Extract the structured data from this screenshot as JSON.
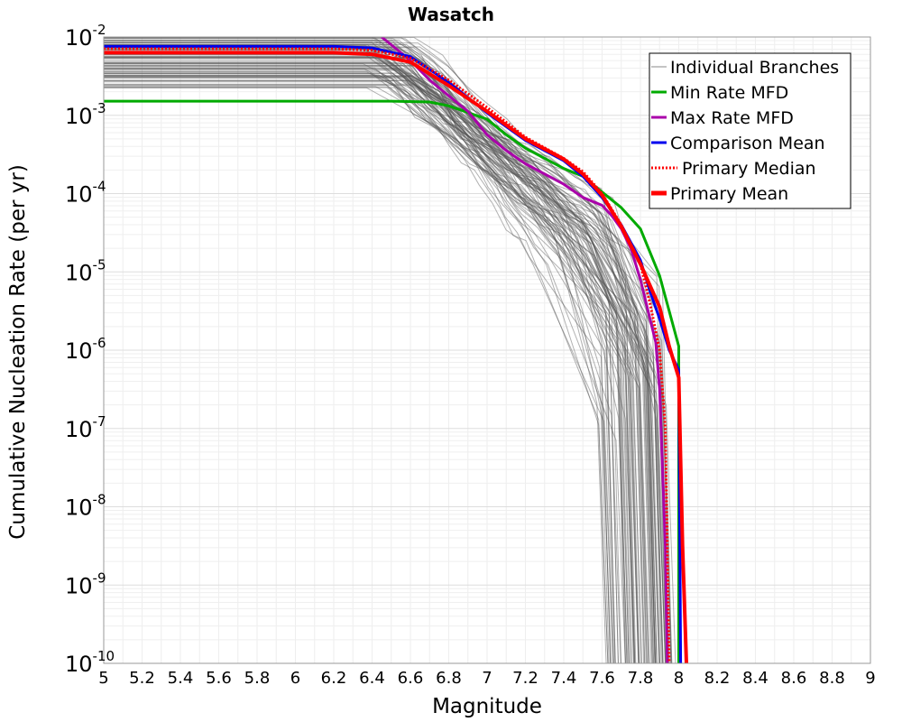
{
  "chart_data": {
    "type": "line",
    "title": "Wasatch",
    "xlabel": "Magnitude",
    "ylabel": "Cumulative Nucleation Rate (per yr)",
    "xlim": [
      5,
      9
    ],
    "ylim_log10": [
      -10,
      -2
    ],
    "y_scale": "log",
    "grid": true,
    "legend_position": "top-right",
    "x_ticks": [
      "5",
      "5.2",
      "5.4",
      "5.6",
      "5.8",
      "6",
      "6.2",
      "6.4",
      "6.6",
      "6.8",
      "7",
      "7.2",
      "7.4",
      "7.6",
      "7.8",
      "8",
      "8.2",
      "8.4",
      "8.6",
      "8.8",
      "9"
    ],
    "x_tick_values": [
      5,
      5.2,
      5.4,
      5.6,
      5.8,
      6,
      6.2,
      6.4,
      6.6,
      6.8,
      7,
      7.2,
      7.4,
      7.6,
      7.8,
      8,
      8.2,
      8.4,
      8.6,
      8.8,
      9
    ],
    "y_ticks": [
      {
        "exp": -2,
        "base": "10",
        "power": "-2"
      },
      {
        "exp": -3,
        "base": "10",
        "power": "-3"
      },
      {
        "exp": -4,
        "base": "10",
        "power": "-4"
      },
      {
        "exp": -5,
        "base": "10",
        "power": "-5"
      },
      {
        "exp": -6,
        "base": "10",
        "power": "-6"
      },
      {
        "exp": -7,
        "base": "10",
        "power": "-7"
      },
      {
        "exp": -8,
        "base": "10",
        "power": "-8"
      },
      {
        "exp": -9,
        "base": "10",
        "power": "-9"
      },
      {
        "exp": -10,
        "base": "10",
        "power": "-10"
      }
    ],
    "branches": {
      "name": "Individual Branches",
      "color": "#555555",
      "count": 90,
      "low_rate_range_log10": [
        -2.65,
        -2.0
      ],
      "max_mag_range": [
        7.62,
        8.0
      ]
    },
    "series": [
      {
        "name": "Min Rate MFD",
        "color": "#00aa00",
        "style": "solid",
        "x": [
          5.0,
          6.0,
          6.5,
          6.7,
          6.8,
          7.0,
          7.1,
          7.2,
          7.4,
          7.5,
          7.6,
          7.7,
          7.8,
          7.9,
          7.95,
          8.0,
          8.0
        ],
        "log10y": [
          -2.82,
          -2.82,
          -2.82,
          -2.83,
          -2.88,
          -3.05,
          -3.25,
          -3.42,
          -3.68,
          -3.78,
          -3.98,
          -4.18,
          -4.45,
          -5.05,
          -5.5,
          -5.95,
          -10
        ]
      },
      {
        "name": "Max Rate MFD",
        "color": "#aa00aa",
        "style": "solid",
        "x": [
          6.45,
          6.6,
          6.7,
          6.8,
          6.9,
          7.0,
          7.1,
          7.2,
          7.4,
          7.5,
          7.6,
          7.65,
          7.7,
          7.75,
          7.8,
          7.85,
          7.88,
          7.9,
          7.93,
          7.94
        ],
        "log10y": [
          -2.0,
          -2.3,
          -2.55,
          -2.75,
          -2.95,
          -3.25,
          -3.45,
          -3.62,
          -3.88,
          -4.05,
          -4.15,
          -4.28,
          -4.45,
          -4.7,
          -5.1,
          -5.6,
          -5.9,
          -6.5,
          -8.5,
          -10
        ]
      },
      {
        "name": "Comparison Mean",
        "color": "#0000ee",
        "style": "solid",
        "x": [
          5.0,
          6.2,
          6.4,
          6.6,
          6.8,
          7.0,
          7.2,
          7.4,
          7.5,
          7.6,
          7.7,
          7.8,
          7.85,
          7.9,
          7.95,
          8.0,
          8.01
        ],
        "log10y": [
          -2.12,
          -2.12,
          -2.14,
          -2.25,
          -2.58,
          -2.97,
          -3.32,
          -3.58,
          -3.78,
          -4.05,
          -4.4,
          -4.85,
          -5.25,
          -5.6,
          -6.0,
          -6.25,
          -10
        ]
      },
      {
        "name": "Primary Median",
        "color": "#ff0000",
        "style": "dotted",
        "x": [
          5.0,
          6.2,
          6.4,
          6.6,
          6.8,
          7.0,
          7.2,
          7.4,
          7.5,
          7.6,
          7.7,
          7.8,
          7.85,
          7.9,
          7.93,
          7.95
        ],
        "log10y": [
          -2.15,
          -2.15,
          -2.17,
          -2.27,
          -2.55,
          -2.9,
          -3.28,
          -3.55,
          -3.72,
          -4.0,
          -4.4,
          -4.9,
          -5.4,
          -6.0,
          -7.0,
          -10
        ]
      },
      {
        "name": "Primary Mean",
        "color": "#ff0000",
        "style": "solid-thick",
        "x": [
          5.0,
          6.2,
          6.4,
          6.6,
          6.8,
          7.0,
          7.2,
          7.4,
          7.5,
          7.6,
          7.7,
          7.8,
          7.9,
          7.95,
          8.0,
          8.02,
          8.04
        ],
        "log10y": [
          -2.2,
          -2.2,
          -2.22,
          -2.32,
          -2.62,
          -2.95,
          -3.3,
          -3.56,
          -3.75,
          -4.02,
          -4.42,
          -4.9,
          -5.45,
          -5.95,
          -6.35,
          -8.5,
          -10
        ]
      }
    ]
  }
}
